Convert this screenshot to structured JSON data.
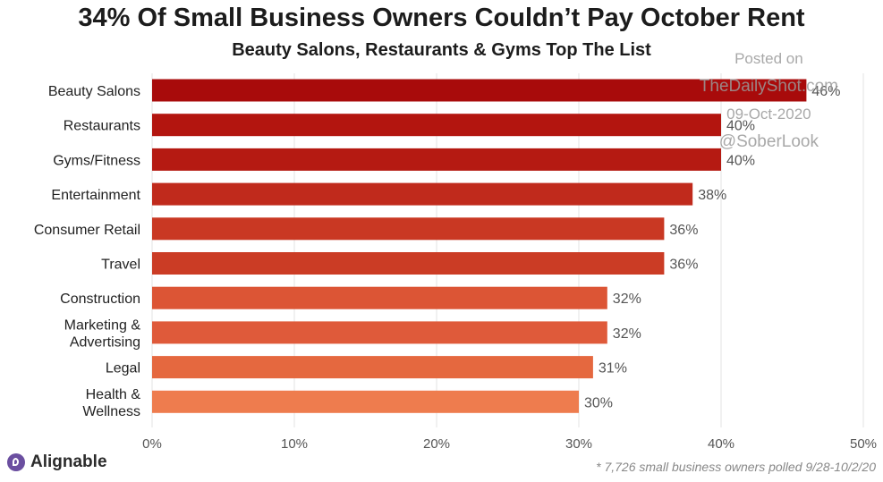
{
  "title": "34% Of Small Business Owners Couldn’t Pay October Rent",
  "subtitle": "Beauty Salons, Restaurants & Gyms Top The List",
  "watermark": {
    "line1": "Posted on",
    "line2": "TheDailyShot.com",
    "line3": "09-Oct-2020",
    "line4": "@SoberLook"
  },
  "footer": {
    "brand": "Alignable",
    "footnote": "* 7,726 small business owners polled 9/28-10/2/20"
  },
  "chart_data": {
    "type": "bar",
    "orientation": "horizontal",
    "categories": [
      [
        "Beauty Salons"
      ],
      [
        "Restaurants"
      ],
      [
        "Gyms/Fitness"
      ],
      [
        "Entertainment"
      ],
      [
        "Consumer Retail"
      ],
      [
        "Travel"
      ],
      [
        "Construction"
      ],
      [
        "Marketing &",
        "Advertising"
      ],
      [
        "Legal"
      ],
      [
        "Health &",
        "Wellness"
      ]
    ],
    "values": [
      46,
      40,
      40,
      38,
      36,
      36,
      32,
      32,
      31,
      30
    ],
    "value_labels": [
      "46%",
      "40%",
      "40%",
      "38%",
      "36%",
      "36%",
      "32%",
      "32%",
      "31%",
      "30%"
    ],
    "colors": [
      "#a80b0b",
      "#b3150f",
      "#b51a12",
      "#c02a1c",
      "#c93823",
      "#cb3c25",
      "#dc5535",
      "#df5a3a",
      "#e5683f",
      "#ee7c4e"
    ],
    "xlim": [
      0,
      50
    ],
    "x_ticks": [
      "0%",
      "10%",
      "20%",
      "30%",
      "40%",
      "50%"
    ],
    "grid": true
  }
}
